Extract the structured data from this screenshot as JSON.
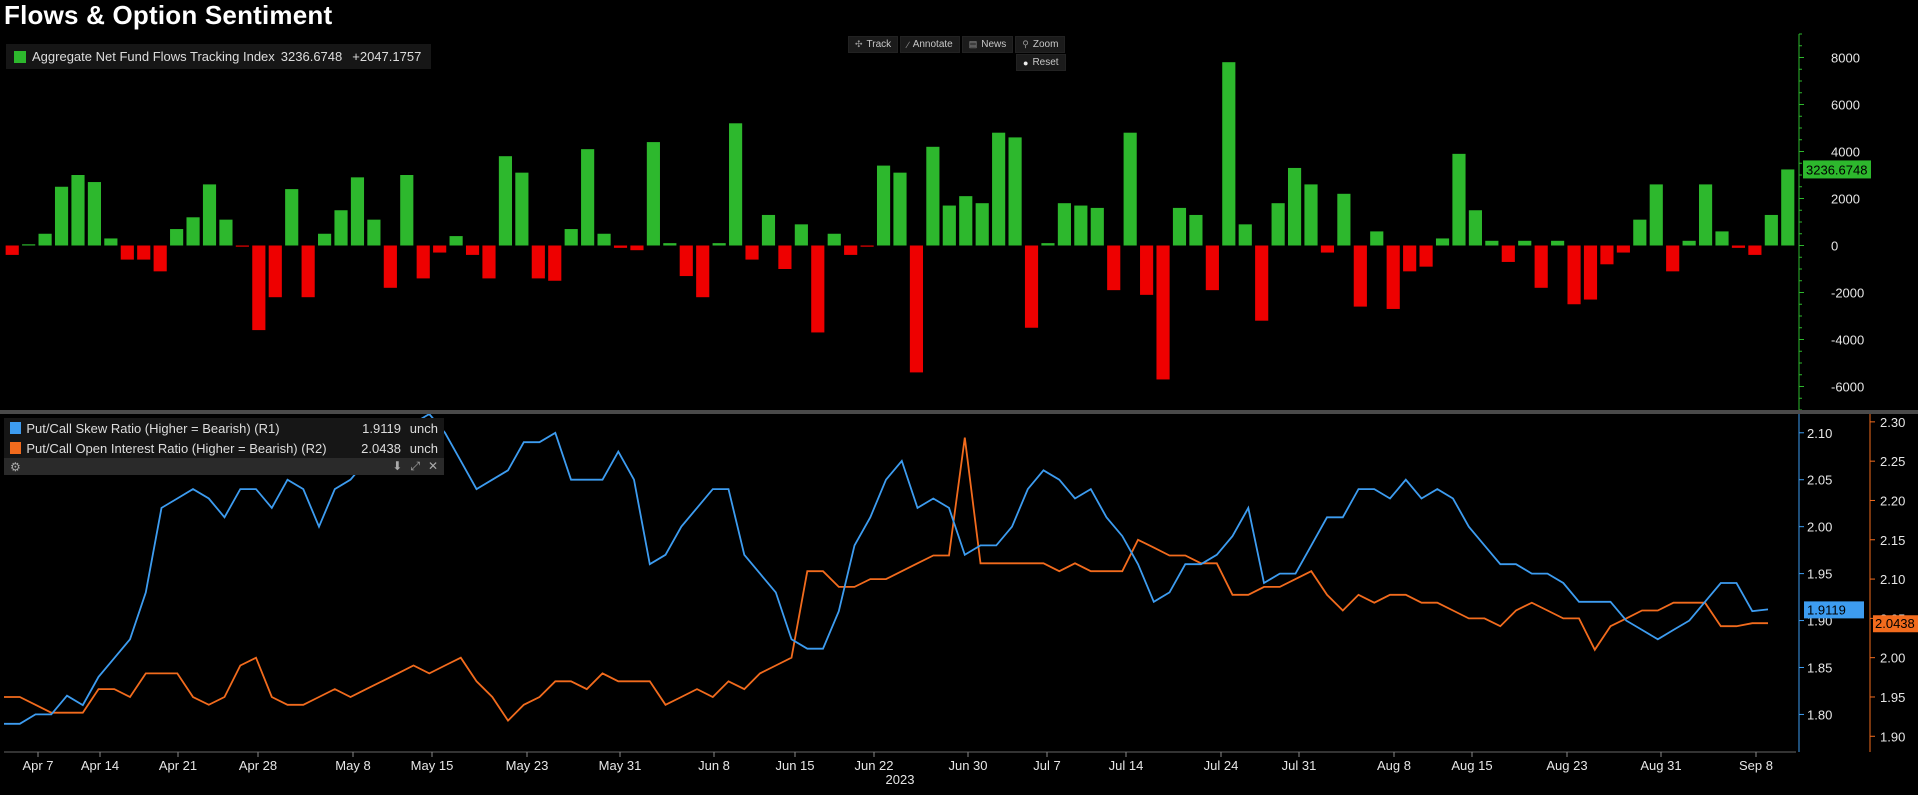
{
  "title": "Flows & Option Sentiment",
  "toolbar": {
    "track": "Track",
    "annotate": "Annotate",
    "news": "News",
    "zoom": "Zoom",
    "reset": "Reset"
  },
  "colors": {
    "up": "#2db82d",
    "down": "#ee0000",
    "skew": "#3d9cf0",
    "oi": "#f26b1d",
    "axis_green": "#2db82d",
    "axis_blue": "#3d9cf0",
    "axis_orange": "#f26b1d"
  },
  "chart_data": [
    {
      "type": "bar",
      "legend": {
        "label": "Aggregate Net Fund Flows Tracking Index",
        "last": "3236.6748",
        "change": "+2047.1757"
      },
      "last_tag": "3236.6748",
      "ylim": [
        -7000,
        9000
      ],
      "yticks": [
        -6000,
        -4000,
        -2000,
        0,
        2000,
        4000,
        6000,
        8000
      ],
      "values": [
        -400,
        50,
        500,
        2500,
        3000,
        2700,
        300,
        -600,
        -600,
        -1100,
        700,
        1200,
        2600,
        1100,
        -50,
        -3600,
        -2200,
        2400,
        -2200,
        500,
        1500,
        2900,
        1100,
        -1800,
        3000,
        -1400,
        -300,
        400,
        -400,
        -1400,
        3800,
        3100,
        -1400,
        -1500,
        700,
        4100,
        500,
        -100,
        -200,
        4400,
        100,
        -1300,
        -2200,
        100,
        5200,
        -600,
        1300,
        -1000,
        900,
        -3700,
        500,
        -400,
        -50,
        3400,
        3100,
        -5400,
        4200,
        1700,
        2100,
        1800,
        4800,
        4600,
        -3500,
        100,
        1800,
        1700,
        1600,
        -1900,
        4800,
        -2100,
        -5700,
        1600,
        1300,
        -1900,
        7800,
        900,
        -3200,
        1800,
        3300,
        2600,
        -300,
        2200,
        -2600,
        600,
        -2700,
        -1100,
        -900,
        300,
        3900,
        1500,
        200,
        -700,
        200,
        -1800,
        200,
        -2500,
        -2300,
        -800,
        -300,
        1100,
        2600,
        -1100,
        200,
        2600,
        600,
        -100,
        -400,
        1300,
        3236.6748
      ]
    },
    {
      "type": "line",
      "x_labels": [
        "Apr 7",
        "Apr 14",
        "Apr 21",
        "Apr 28",
        "May 8",
        "May 15",
        "May 23",
        "May 31",
        "Jun 8",
        "Jun 15",
        "Jun 22",
        "Jun 30",
        "Jul 7",
        "Jul 14",
        "Jul 24",
        "Jul 31",
        "Aug 8",
        "Aug 15",
        "Aug 23",
        "Aug 31",
        "Sep 8"
      ],
      "year_label": "2023",
      "right1": {
        "ylim": [
          1.76,
          2.12
        ],
        "yticks": [
          1.8,
          1.85,
          1.9,
          1.95,
          2.0,
          2.05,
          2.1
        ],
        "tick_labels": [
          "1.80",
          "1.85",
          "1.90",
          "1.95",
          "2.00",
          "2.05",
          "2.10"
        ]
      },
      "right2": {
        "ylim": [
          1.88,
          2.31
        ],
        "yticks": [
          1.9,
          1.95,
          2.0,
          2.05,
          2.1,
          2.15,
          2.2,
          2.25,
          2.3
        ],
        "tick_labels": [
          "1.90",
          "1.95",
          "2.00",
          "2.05",
          "2.10",
          "2.15",
          "2.20",
          "2.25",
          "2.30"
        ]
      },
      "legend": {
        "skew_label": "Put/Call Skew Ratio (Higher = Bearish) (R1)",
        "skew_last": "1.9119",
        "skew_chg": "unch",
        "oi_label": "Put/Call Open Interest Ratio (Higher = Bearish) (R2)",
        "oi_last": "2.0438",
        "oi_chg": "unch"
      },
      "skew_tag": "1.9119",
      "oi_tag": "2.0438",
      "series": [
        {
          "name": "Put/Call Skew Ratio (Higher = Bearish) (R1)",
          "axis": "R1",
          "values": [
            1.79,
            1.79,
            1.8,
            1.8,
            1.82,
            1.81,
            1.84,
            1.86,
            1.88,
            1.93,
            2.02,
            2.03,
            2.04,
            2.03,
            2.01,
            2.04,
            2.04,
            2.02,
            2.05,
            2.04,
            2.0,
            2.04,
            2.05,
            2.07,
            2.09,
            2.1,
            2.11,
            2.12,
            2.1,
            2.07,
            2.04,
            2.05,
            2.06,
            2.09,
            2.09,
            2.1,
            2.05,
            2.05,
            2.05,
            2.08,
            2.05,
            1.96,
            1.97,
            2.0,
            2.02,
            2.04,
            2.04,
            1.97,
            1.95,
            1.93,
            1.88,
            1.87,
            1.87,
            1.91,
            1.98,
            2.01,
            2.05,
            2.07,
            2.02,
            2.03,
            2.02,
            1.97,
            1.98,
            1.98,
            2.0,
            2.04,
            2.06,
            2.05,
            2.03,
            2.04,
            2.01,
            1.99,
            1.96,
            1.92,
            1.93,
            1.96,
            1.96,
            1.97,
            1.99,
            2.02,
            1.94,
            1.95,
            1.95,
            1.98,
            2.01,
            2.01,
            2.04,
            2.04,
            2.03,
            2.05,
            2.03,
            2.04,
            2.03,
            2.0,
            1.98,
            1.96,
            1.96,
            1.95,
            1.95,
            1.94,
            1.92,
            1.92,
            1.92,
            1.9,
            1.89,
            1.88,
            1.89,
            1.9,
            1.92,
            1.94,
            1.94,
            1.91,
            1.9119
          ]
        },
        {
          "name": "Put/Call Open Interest Ratio (Higher = Bearish) (R2)",
          "axis": "R2",
          "values": [
            1.95,
            1.95,
            1.94,
            1.93,
            1.93,
            1.93,
            1.96,
            1.96,
            1.95,
            1.98,
            1.98,
            1.98,
            1.95,
            1.94,
            1.95,
            1.99,
            2.0,
            1.95,
            1.94,
            1.94,
            1.95,
            1.96,
            1.95,
            1.96,
            1.97,
            1.98,
            1.99,
            1.98,
            1.99,
            2.0,
            1.97,
            1.95,
            1.92,
            1.94,
            1.95,
            1.97,
            1.97,
            1.96,
            1.98,
            1.97,
            1.97,
            1.97,
            1.94,
            1.95,
            1.96,
            1.95,
            1.97,
            1.96,
            1.98,
            1.99,
            2.0,
            2.11,
            2.11,
            2.09,
            2.09,
            2.1,
            2.1,
            2.11,
            2.12,
            2.13,
            2.13,
            2.28,
            2.12,
            2.12,
            2.12,
            2.12,
            2.12,
            2.11,
            2.12,
            2.11,
            2.11,
            2.11,
            2.15,
            2.14,
            2.13,
            2.13,
            2.12,
            2.12,
            2.08,
            2.08,
            2.09,
            2.09,
            2.1,
            2.11,
            2.08,
            2.06,
            2.08,
            2.07,
            2.08,
            2.08,
            2.07,
            2.07,
            2.06,
            2.05,
            2.05,
            2.04,
            2.06,
            2.07,
            2.06,
            2.05,
            2.05,
            2.01,
            2.04,
            2.05,
            2.06,
            2.06,
            2.07,
            2.07,
            2.07,
            2.04,
            2.04,
            2.0438,
            2.0438
          ]
        }
      ]
    }
  ]
}
